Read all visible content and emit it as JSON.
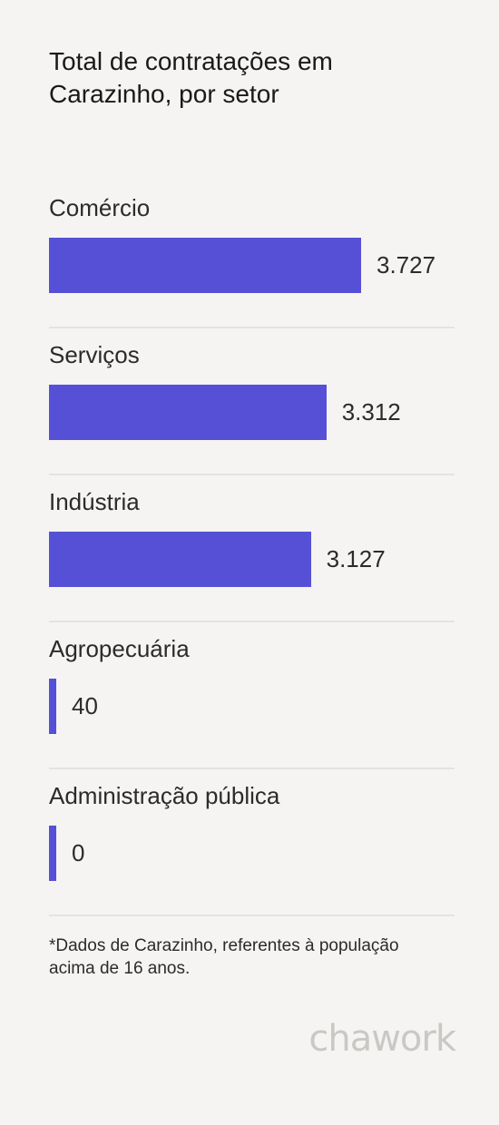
{
  "chart_data": {
    "type": "bar",
    "orientation": "horizontal",
    "title": "Total de contratações em Carazinho, por setor",
    "categories": [
      "Comércio",
      "Serviços",
      "Indústria",
      "Agropecuária",
      "Administração pública"
    ],
    "values": [
      3727,
      3312,
      3127,
      40,
      0
    ],
    "value_labels": [
      "3.727",
      "3.312",
      "3.127",
      "40",
      "0"
    ],
    "bar_color": "#5650d6",
    "grid": false,
    "legend": "none"
  },
  "footnote": "*Dados de Carazinho, referentes à população acima de 16 anos.",
  "brand": {
    "logo_text": "chawork"
  }
}
